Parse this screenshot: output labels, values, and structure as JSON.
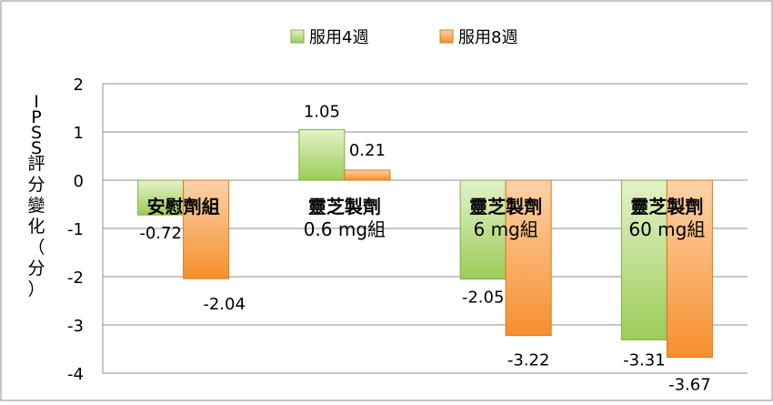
{
  "chart_data": {
    "type": "bar",
    "categories": [
      [
        "安慰劑組"
      ],
      [
        "靈芝製劑",
        "0.6 mg組"
      ],
      [
        "靈芝製劑",
        "6 mg組"
      ],
      [
        "靈芝製劑",
        "60 mg組"
      ]
    ],
    "series": [
      {
        "name": "服用4週",
        "values": [
          -0.72,
          1.05,
          -2.05,
          -3.31
        ],
        "color": "#a9d36a"
      },
      {
        "name": "服用8週",
        "values": [
          -2.04,
          0.21,
          -3.22,
          -3.67
        ],
        "color": "#f79a3e"
      }
    ],
    "ylabel": "IPSS評分變化（分）",
    "ylim": [
      -4,
      2
    ],
    "yticks": [
      2,
      1,
      0,
      -1,
      -2,
      -3,
      -4
    ],
    "grid": true,
    "legend": "top-center"
  }
}
